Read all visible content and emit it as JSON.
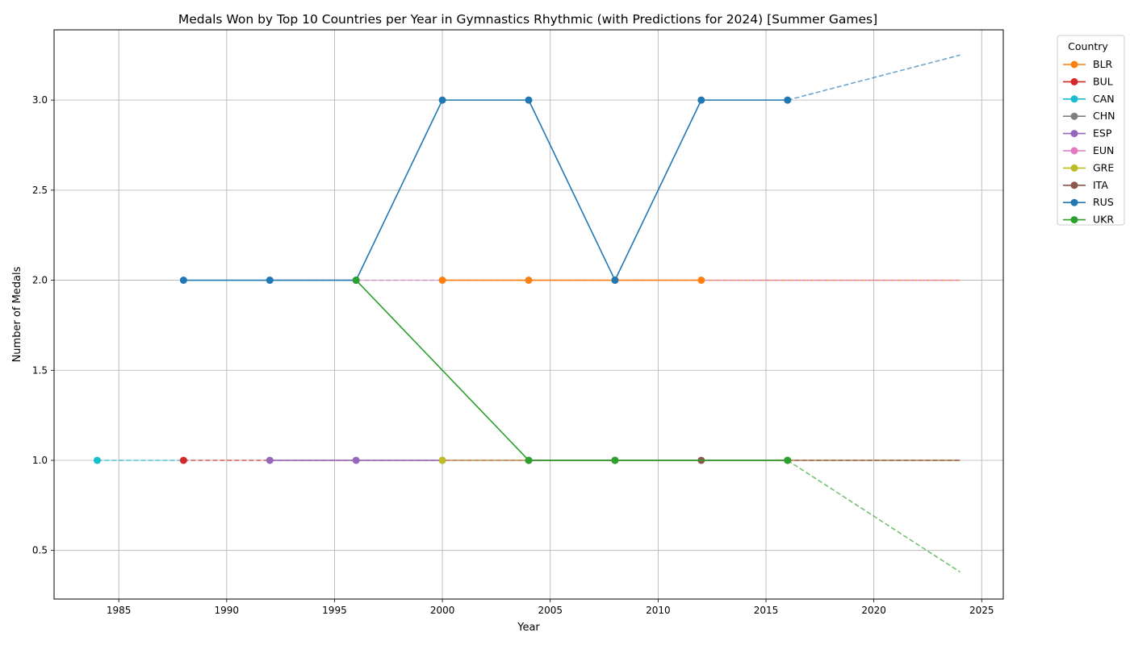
{
  "chart_data": {
    "type": "line",
    "title": "Medals Won by Top 10 Countries per Year in Gymnastics Rhythmic (with Predictions for 2024) [Summer Games]",
    "xlabel": "Year",
    "ylabel": "Number of Medals",
    "xlim": [
      1982,
      2026
    ],
    "ylim": [
      0.23,
      3.39
    ],
    "xticks": [
      1985,
      1990,
      1995,
      2000,
      2005,
      2010,
      2015,
      2020,
      2025
    ],
    "yticks": [
      0.5,
      1.0,
      1.5,
      2.0,
      2.5,
      3.0
    ],
    "grid": true,
    "legend": {
      "title": "Country",
      "placement": "outside-top-right"
    },
    "series": [
      {
        "name": "BLR",
        "color": "#ff7f0e",
        "x": [
          2000,
          2004,
          2008,
          2012
        ],
        "y": [
          2,
          2,
          2,
          2
        ],
        "prediction": {
          "x": [
            2012,
            2024
          ],
          "y": [
            2,
            2
          ]
        }
      },
      {
        "name": "BUL",
        "color": "#d62728",
        "x": [
          1988
        ],
        "y": [
          1
        ],
        "prediction": {
          "x": [
            1988,
            2024
          ],
          "y": [
            1,
            1
          ]
        }
      },
      {
        "name": "CAN",
        "color": "#17becf",
        "x": [
          1984
        ],
        "y": [
          1
        ],
        "prediction": {
          "x": [
            1984,
            1988
          ],
          "y": [
            1,
            1
          ]
        }
      },
      {
        "name": "CHN",
        "color": "#7f7f7f",
        "x": [
          2008
        ],
        "y": [
          1
        ],
        "prediction": null
      },
      {
        "name": "ESP",
        "color": "#9467bd",
        "x": [
          1992,
          1996,
          2000
        ],
        "y": [
          1,
          1,
          1
        ],
        "prediction": {
          "x": [
            2000,
            2024
          ],
          "y": [
            1,
            1
          ]
        }
      },
      {
        "name": "EUN",
        "color": "#e377c2",
        "x": [
          1992
        ],
        "y": [
          2
        ],
        "prediction": {
          "x": [
            1992,
            2024
          ],
          "y": [
            2,
            2
          ]
        }
      },
      {
        "name": "GRE",
        "color": "#bcbd22",
        "x": [
          2000
        ],
        "y": [
          1
        ],
        "prediction": {
          "x": [
            2000,
            2024
          ],
          "y": [
            1,
            1
          ]
        }
      },
      {
        "name": "ITA",
        "color": "#8c564b",
        "x": [
          2004,
          2008,
          2012,
          2016
        ],
        "y": [
          1,
          1,
          1,
          1
        ],
        "prediction": {
          "x": [
            2016,
            2024
          ],
          "y": [
            1,
            1
          ]
        }
      },
      {
        "name": "RUS",
        "color": "#1f77b4",
        "x": [
          1988,
          1992,
          1996,
          2000,
          2004,
          2008,
          2012,
          2016
        ],
        "y": [
          2,
          2,
          2,
          3,
          3,
          2,
          3,
          3
        ],
        "prediction": {
          "x": [
            2016,
            2024
          ],
          "y": [
            3,
            3.25
          ]
        }
      },
      {
        "name": "UKR",
        "color": "#2ca02c",
        "x": [
          1996,
          2004,
          2008,
          2016
        ],
        "y": [
          2,
          1,
          1,
          1
        ],
        "prediction": {
          "x": [
            2016,
            2024
          ],
          "y": [
            1,
            0.38
          ]
        }
      }
    ]
  }
}
